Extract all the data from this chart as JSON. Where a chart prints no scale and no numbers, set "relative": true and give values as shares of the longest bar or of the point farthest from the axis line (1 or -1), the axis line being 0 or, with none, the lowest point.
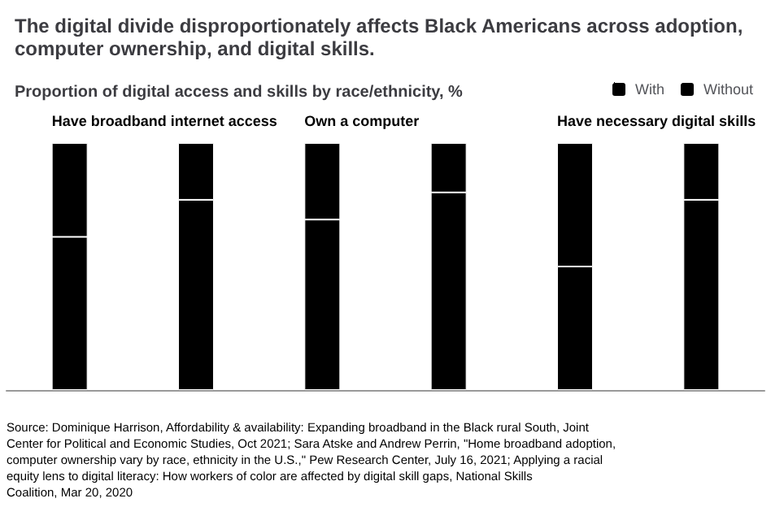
{
  "chart_data": {
    "type": "bar",
    "title": "The digital divide disproportionately affects Black Americans across adoption, computer ownership, and digital skills.",
    "subtitle": "Proportion of digital access and skills by race/ethnicity, %",
    "categories": [
      null,
      null,
      null,
      null,
      null,
      null
    ],
    "stacked": true,
    "relative": true,
    "series": [
      {
        "name": "With",
        "color": "#000000",
        "values": [
          0.62,
          0.77,
          0.69,
          0.8,
          0.5,
          0.77
        ]
      },
      {
        "name": "Without",
        "color": "#000000",
        "values": [
          0.38,
          0.23,
          0.31,
          0.2,
          0.5,
          0.23
        ]
      }
    ],
    "legend": "top right",
    "annotations": [
      "Have broadband internet access",
      "Own a computer",
      "Have necessary digital skills",
      "Source: Dominique Harrison, Affordability & availability: Expanding broadband in the Black rural South, Joint Center for Political and Economic Studies, Oct 2021; Sara Atske and Andrew Perrin, \"Home broadband adoption, computer ownership vary by race, ethnicity in the U.S.,\" Pew Research Center, July 16, 2021; Applying a racial equity lens to digital literacy: How workers of color are affected by digital skill gaps, National Skills Coalition, Mar 20, 2020"
    ]
  }
}
